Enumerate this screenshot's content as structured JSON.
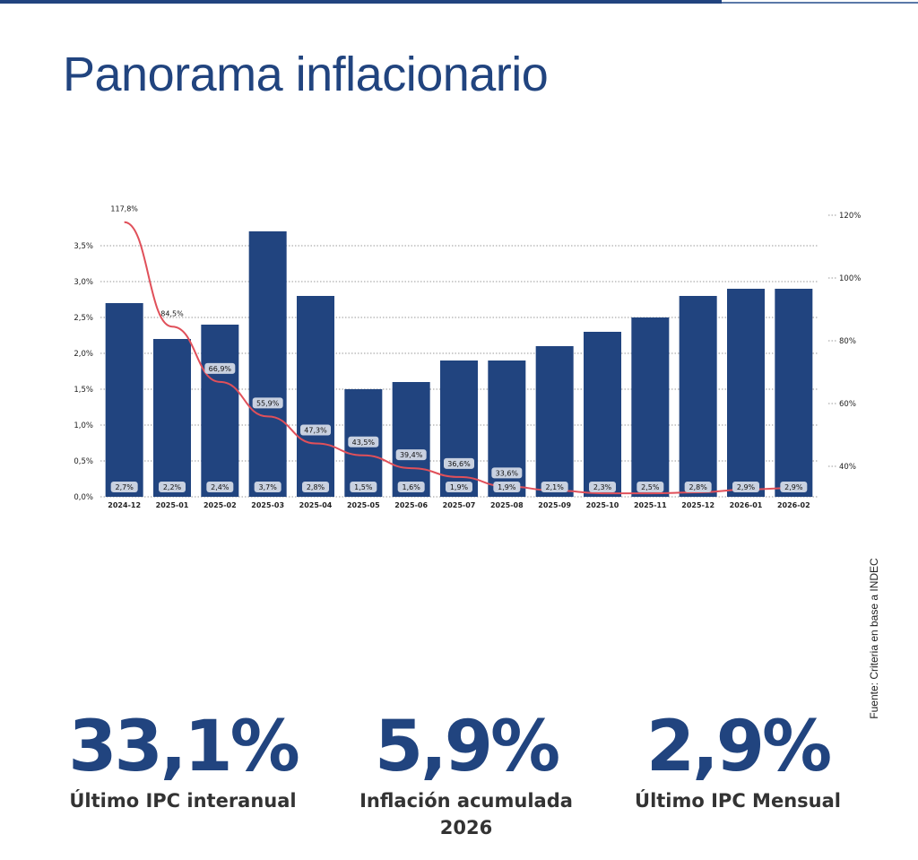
{
  "title": "Panorama inflacionario",
  "source": "Fuente: Criteria en base a INDEC",
  "kpis": [
    {
      "value": "33,1%",
      "label": "Último IPC interanual"
    },
    {
      "value": "5,9%",
      "label": "Inflación acumulada 2026"
    },
    {
      "value": "2,9%",
      "label": "Último IPC Mensual"
    }
  ],
  "colors": {
    "bar": "#21447f",
    "line": "#e0505a",
    "title": "#21447f"
  },
  "chart_data": {
    "type": "bar+line",
    "categories": [
      "2024-12",
      "2025-01",
      "2025-02",
      "2025-03",
      "2025-04",
      "2025-05",
      "2025-06",
      "2025-07",
      "2025-08",
      "2025-09",
      "2025-10",
      "2025-11",
      "2025-12",
      "2026-01",
      "2026-02"
    ],
    "series": [
      {
        "type": "bar",
        "axis": "left",
        "values": [
          2.7,
          2.2,
          2.4,
          3.7,
          2.8,
          1.5,
          1.6,
          1.9,
          1.9,
          2.1,
          2.3,
          2.5,
          2.8,
          2.9,
          2.9
        ],
        "labels": [
          "2,7%",
          "2,2%",
          "2,4%",
          "3,7%",
          "2,8%",
          "1,5%",
          "1,6%",
          "1,9%",
          "1,9%",
          "2,1%",
          "2,3%",
          "2,5%",
          "2,8%",
          "2,9%",
          "2,9%"
        ]
      },
      {
        "type": "line",
        "axis": "right",
        "values": [
          117.8,
          84.5,
          66.9,
          55.9,
          47.3,
          43.5,
          39.4,
          36.6,
          33.6,
          32.3,
          31.4,
          31.4,
          31.7,
          32.6,
          33.1
        ],
        "labels": [
          "117,8%",
          "84,5%",
          "66,9%",
          "55,9%",
          "47,3%",
          "43,5%",
          "39,4%",
          "36,6%",
          "33,6%",
          "",
          "",
          "",
          "",
          "",
          ""
        ]
      }
    ],
    "left_axis": {
      "ticks": [
        0,
        0.5,
        1,
        1.5,
        2,
        2.5,
        3,
        3.5
      ],
      "tick_labels": [
        "0,0%",
        "0,5%",
        "1,0%",
        "1,5%",
        "2,0%",
        "2,5%",
        "3,0%",
        "3,5%"
      ]
    },
    "right_axis": {
      "ticks": [
        40,
        60,
        80,
        100,
        120
      ],
      "tick_labels": [
        "40%",
        "60%",
        "80%",
        "100%",
        "120%"
      ]
    },
    "grid": "horizontal dotted"
  }
}
